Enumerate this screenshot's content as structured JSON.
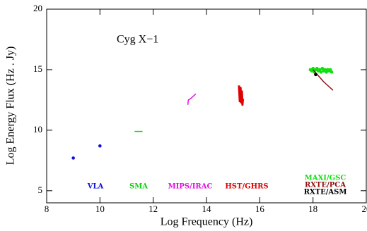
{
  "chart_data": {
    "type": "scatter",
    "annotation": "Cyg X−1",
    "x_label": "Log Frequency (Hz)",
    "y_label": "Log Energy Flux (Hz . Jy)",
    "xlim": [
      8,
      20
    ],
    "ylim": [
      4,
      20
    ],
    "xticks": [
      8,
      10,
      12,
      14,
      16,
      18,
      20
    ],
    "yticks": [
      5,
      10,
      15,
      20
    ],
    "series": [
      {
        "name": "VLA",
        "color": "#1010e0",
        "style": "points",
        "x": [
          9.0,
          10.0
        ],
        "y": [
          7.7,
          8.7
        ]
      },
      {
        "name": "SMA",
        "color": "#10d010",
        "style": "line",
        "x": [
          11.3,
          11.45,
          11.6
        ],
        "y": [
          9.9,
          9.9,
          9.9
        ]
      },
      {
        "name": "MIPS/IRAC",
        "color": "#e010e0",
        "style": "line",
        "x": [
          13.3,
          13.32,
          13.4,
          13.45,
          13.5,
          13.6
        ],
        "y": [
          12.1,
          12.5,
          12.6,
          12.7,
          12.8,
          13.0
        ]
      },
      {
        "name": "HST/GHRS",
        "color": "#e00000",
        "style": "line",
        "x": [
          15.22,
          15.25,
          15.28,
          15.3,
          15.33,
          15.35,
          15.37
        ],
        "y": [
          13.7,
          12.4,
          13.5,
          12.3,
          13.2,
          12.1,
          12.6
        ]
      },
      {
        "name": "MAXI/GSC",
        "color": "#10e010",
        "style": "points",
        "x": [
          17.9,
          17.95,
          18.0,
          18.05,
          18.1,
          18.15,
          18.2,
          18.25,
          18.3,
          18.35,
          18.4,
          18.45,
          18.5,
          18.55,
          18.6,
          18.65,
          18.7
        ],
        "y": [
          15.0,
          14.9,
          15.1,
          14.8,
          15.0,
          15.1,
          14.9,
          15.0,
          14.8,
          15.1,
          14.9,
          15.0,
          14.8,
          15.0,
          14.9,
          15.0,
          14.8
        ]
      },
      {
        "name": "RXTE/PCA",
        "color": "#901010",
        "style": "line",
        "x": [
          18.0,
          18.2,
          18.4,
          18.6,
          18.75
        ],
        "y": [
          15.0,
          14.5,
          14.0,
          13.6,
          13.3
        ]
      },
      {
        "name": "RXTE/ASM",
        "color": "#000000",
        "style": "points",
        "x": [
          18.1
        ],
        "y": [
          14.6
        ]
      }
    ]
  }
}
